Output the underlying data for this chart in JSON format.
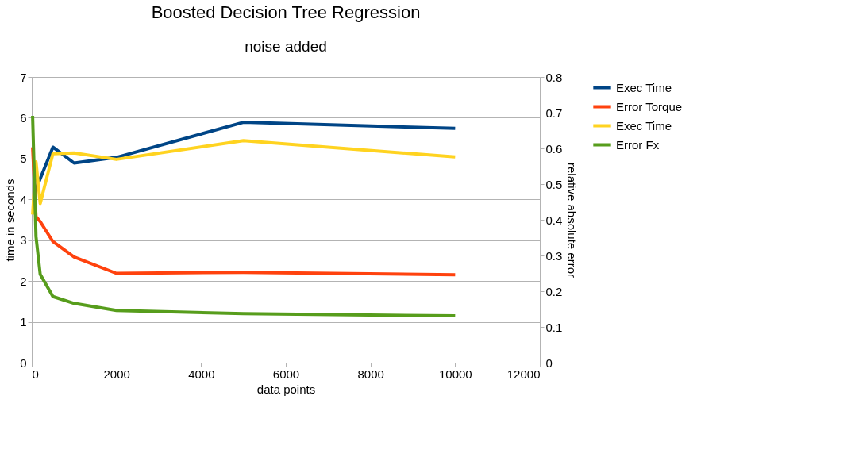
{
  "chart_data": {
    "type": "line",
    "title": "Boosted Decision Tree Regression",
    "subtitle": "noise added",
    "xlabel": "data points",
    "ylabel": "time in seconds",
    "y2label": "relative absolute error",
    "series": [
      {
        "name": "Exec Time",
        "color": "#004586",
        "x": [
          50,
          500,
          1000,
          2000,
          5000,
          10000
        ],
        "values": [
          4.12,
          5.28,
          4.89,
          5.03,
          5.89,
          5.74
        ]
      },
      {
        "name": "Error Torque",
        "color": "#ff420e",
        "axis": "y2",
        "x": [
          20,
          100,
          200,
          500,
          1000,
          2000,
          5000,
          10000
        ],
        "values": [
          0.603,
          0.409,
          0.395,
          0.339,
          0.296,
          0.25,
          0.253,
          0.246
        ]
      },
      {
        "name": "Exec Time",
        "color": "#ffd320",
        "x": [
          20,
          100,
          200,
          500,
          1000,
          2000,
          5000,
          10000
        ],
        "values": [
          3.63,
          4.92,
          3.9,
          5.12,
          5.14,
          4.98,
          5.44,
          5.04
        ]
      },
      {
        "name": "Error Fx",
        "color": "#579d1c",
        "axis": "y2",
        "x": [
          20,
          100,
          200,
          500,
          1000,
          2000,
          5000,
          10000
        ],
        "values": [
          0.691,
          0.353,
          0.247,
          0.185,
          0.166,
          0.146,
          0.137,
          0.131
        ]
      }
    ],
    "xlim": [
      0,
      12000
    ],
    "xticks": [
      0,
      2000,
      4000,
      6000,
      8000,
      10000,
      12000
    ],
    "ylim": [
      0,
      7
    ],
    "yticks": [
      0,
      1,
      2,
      3,
      4,
      5,
      6,
      7
    ],
    "y2lim": [
      0,
      0.8
    ],
    "y2ticks": [
      0,
      0.1,
      0.2,
      0.3,
      0.4,
      0.5,
      0.6,
      0.7,
      0.8
    ],
    "grid": "y",
    "legend": "right",
    "marker": "none",
    "line_style": "solid"
  }
}
